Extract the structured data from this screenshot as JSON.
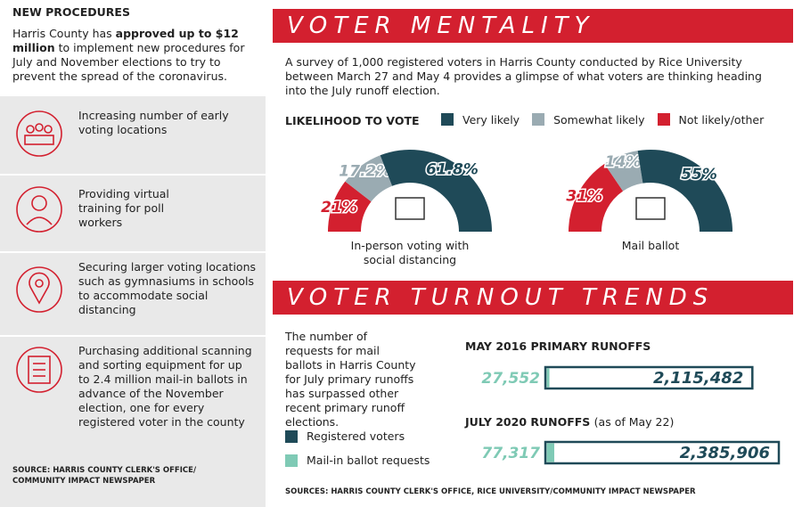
{
  "sidebar": {
    "title": "NEW PROCEDURES",
    "intro": [
      "Harris County has ",
      "approved up to $12 million",
      " to implement new procedures for July and November elections to try to prevent the spread of the coronavirus."
    ],
    "items": [
      "Increasing number of early voting locations",
      "Providing virtual training for poll workers",
      "Securing larger voting locations such as gymnasiums in schools to accommodate social distancing",
      "Purchasing additional scanning and sorting equipment for up to 2.4 million mail-in ballots in advance of the November election, one for every registered voter in the county"
    ],
    "source": "SOURCE: HARRIS COUNTY CLERK'S OFFICE/ COMMUNITY IMPACT NEWSPAPER"
  },
  "mentality": {
    "title": "VOTER MENTALITY",
    "description": "A survey of 1,000 registered voters in Harris County conducted by Rice University between March 27 and May 4 provides a glimpse of what voters are thinking heading into the July runoff election.",
    "legend_title": "LIKELIHOOD TO VOTE",
    "series": [
      {
        "name": "Very likely",
        "color": "#1f4a58"
      },
      {
        "name": "Somewhat likely",
        "color": "#9aabb2"
      },
      {
        "name": "Not likely/other",
        "color": "#d3202f"
      }
    ],
    "charts": [
      {
        "type": "pie",
        "label": "In-person voting with social distancing",
        "values": [
          61.8,
          17.2,
          21
        ],
        "value_labels": [
          "61.8%",
          "17.2%",
          "21%"
        ]
      },
      {
        "type": "pie",
        "label": "Mail ballot",
        "values": [
          55,
          14,
          31
        ],
        "value_labels": [
          "55%",
          "14%",
          "31%"
        ]
      }
    ]
  },
  "turnout": {
    "title": "VOTER TURNOUT TRENDS",
    "description": "The number of requests for mail ballots in Harris County for July primary runoffs has surpassed other recent primary runoff elections.",
    "series": [
      {
        "name": "Registered voters",
        "color": "#1f4a58"
      },
      {
        "name": "Mail-in ballot requests",
        "color": "#7fcab5"
      }
    ],
    "groups": [
      {
        "type": "bar",
        "title": "MAY 2016 PRIMARY RUNOFFS",
        "values": [
          2115482,
          27552
        ],
        "value_labels": [
          "2,115,482",
          "27,552"
        ]
      },
      {
        "type": "bar",
        "title": "JULY 2020 RUNOFFS",
        "subtitle": "(as of May 22)",
        "values": [
          2385906,
          77317
        ],
        "value_labels": [
          "2,385,906",
          "77,317"
        ]
      }
    ],
    "source": "SOURCES: HARRIS COUNTY CLERK'S OFFICE, RICE UNIVERSITY/COMMUNITY IMPACT NEWSPAPER"
  }
}
